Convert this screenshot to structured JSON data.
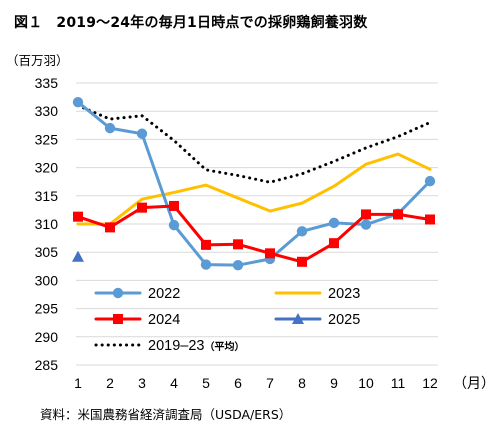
{
  "title": {
    "figure_no": "図１",
    "text": "2019～24年の毎月1日時点での採卵鶏飼養羽数"
  },
  "unit_label": "（百万羽）",
  "source_label": "資料：米国農務省経済調査局（USDA/ERS）",
  "chart_data": {
    "type": "line",
    "title": "2019～24年の毎月1日時点での採卵鶏飼養羽数",
    "ylabel": "（百万羽）",
    "xlabel": "（月）",
    "ylim": [
      285,
      335
    ],
    "ytick_step": 5,
    "categories": [
      "1",
      "2",
      "3",
      "4",
      "5",
      "6",
      "7",
      "8",
      "9",
      "10",
      "11",
      "12"
    ],
    "grid": "horizontal",
    "series": [
      {
        "name": "2022",
        "color": "#5B9BD5",
        "marker": "circle",
        "style": "solid",
        "values": [
          331.6,
          327.0,
          326.0,
          309.8,
          302.8,
          302.7,
          303.8,
          308.7,
          310.2,
          309.9,
          311.8,
          317.6
        ]
      },
      {
        "name": "2023",
        "color": "#FFC000",
        "marker": "none",
        "style": "solid",
        "values": [
          310.0,
          310.0,
          314.4,
          315.6,
          316.9,
          314.6,
          312.3,
          313.7,
          316.7,
          320.6,
          322.4,
          319.7
        ]
      },
      {
        "name": "2024",
        "color": "#FF0000",
        "marker": "square",
        "style": "solid",
        "values": [
          311.3,
          309.4,
          312.9,
          313.2,
          306.3,
          306.4,
          304.8,
          303.3,
          306.6,
          311.7,
          311.7,
          310.8
        ]
      },
      {
        "name": "2025",
        "color": "#4472C4",
        "marker": "triangle",
        "style": "solid",
        "values": [
          304.2,
          null,
          null,
          null,
          null,
          null,
          null,
          null,
          null,
          null,
          null,
          null
        ]
      },
      {
        "name": "2019–23",
        "name_suffix": "（平均）",
        "color": "#000000",
        "marker": "none",
        "style": "dotted",
        "values": [
          331.0,
          328.6,
          329.2,
          324.8,
          319.6,
          318.6,
          317.4,
          318.9,
          321.1,
          323.5,
          325.5,
          328.0
        ]
      }
    ]
  }
}
